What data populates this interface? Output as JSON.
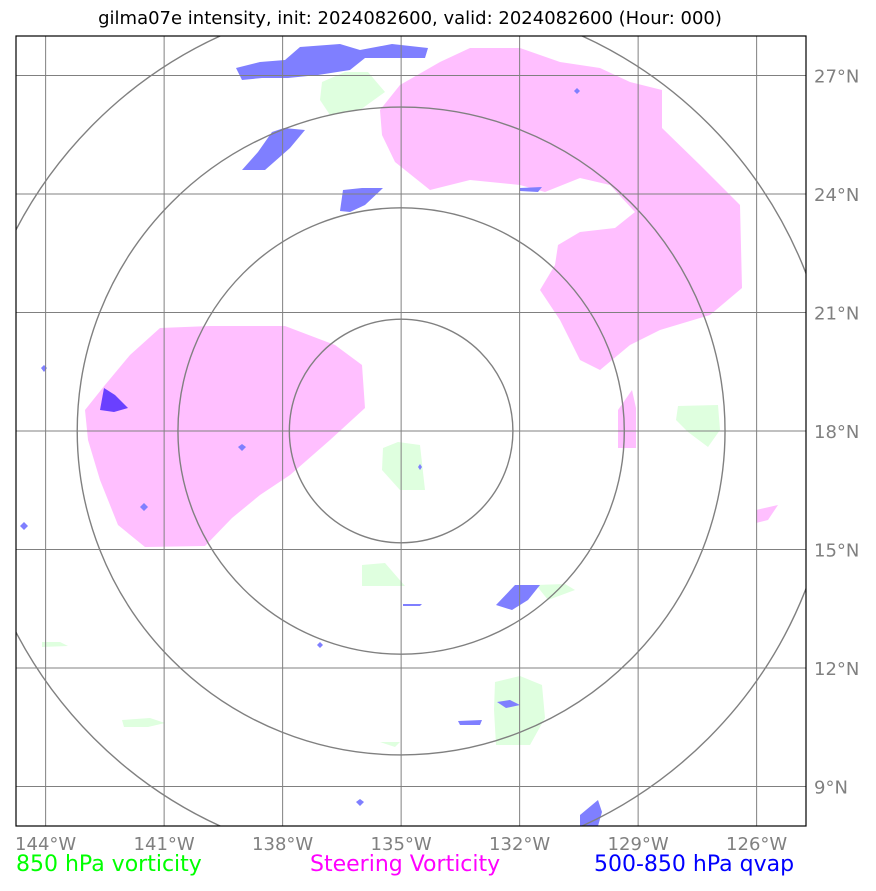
{
  "title": "gilma07e intensity, init: 2024082600, valid: 2024082600 (Hour: 000)",
  "map": {
    "lon_ticks": [
      "144°W",
      "141°W",
      "138°W",
      "135°W",
      "132°W",
      "129°W",
      "126°W"
    ],
    "lat_ticks": [
      "27°N",
      "24°N",
      "21°N",
      "18°N",
      "15°N",
      "12°N",
      "9°N"
    ],
    "lon_range": [
      -144.75,
      -124.75
    ],
    "lat_range": [
      8.0,
      28.0
    ],
    "center": {
      "lon": -135.0,
      "lat": 18.0
    },
    "range_rings_deg": [
      2.83,
      5.65,
      8.2,
      11.0
    ],
    "grid": true
  },
  "legend": [
    {
      "label": "850 hPa vorticity",
      "color": "#00ff00"
    },
    {
      "label": "Steering Vorticity",
      "color": "#ff00ff"
    },
    {
      "label": "500-850 hPa qvap",
      "color": "#0000ff"
    }
  ],
  "colors": {
    "steering_fill": "#ffbfff",
    "vorticity_fill": "#dfffdf",
    "qvap_fill": "#7f7fff",
    "qvap_dark": "#6a40ff",
    "grid": "#808080",
    "rings": "#808080"
  }
}
